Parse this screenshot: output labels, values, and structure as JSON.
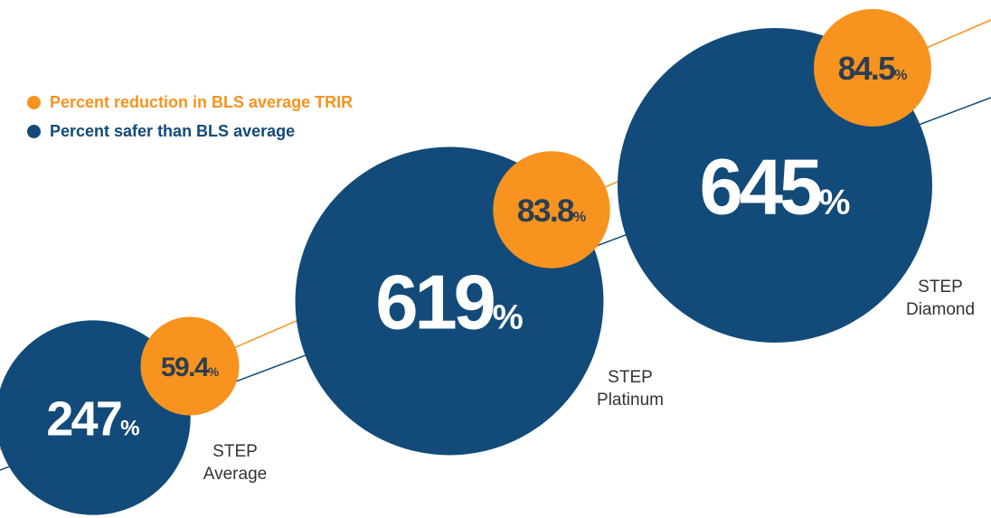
{
  "chart_data": {
    "type": "bubble",
    "categories": [
      "STEP Average",
      "STEP Platinum",
      "STEP Diamond"
    ],
    "unit": "%",
    "series": [
      {
        "name": "Percent reduction in BLS average TRIR",
        "color": "#f7931e",
        "values": [
          59.4,
          83.8,
          84.5
        ]
      },
      {
        "name": "Percent safer than BLS average",
        "color": "#124b79",
        "values": [
          247,
          619,
          645
        ]
      }
    ]
  }
}
